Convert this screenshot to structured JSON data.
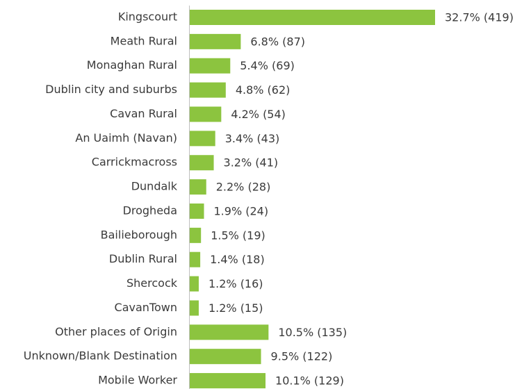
{
  "chart_data": {
    "type": "hbar",
    "color": "#8cc43f",
    "categories": [
      "Kingscourt",
      "Meath Rural",
      "Monaghan Rural",
      "Dublin city and suburbs",
      "Cavan Rural",
      "An Uaimh (Navan)",
      "Carrickmacross",
      "Dundalk",
      "Drogheda",
      "Bailieborough",
      "Dublin Rural",
      "Shercock",
      "CavanTown",
      "Other places of Origin",
      "Unknown/Blank Destination",
      "Mobile Worker"
    ],
    "values": [
      32.7,
      6.8,
      5.4,
      4.8,
      4.2,
      3.4,
      3.2,
      2.2,
      1.9,
      1.5,
      1.4,
      1.2,
      1.2,
      10.5,
      9.5,
      10.1
    ],
    "value_labels": [
      "32.7% (419)",
      "6.8% (87)",
      "5.4% (69)",
      "4.8% (62)",
      "4.2% (54)",
      "3.4% (43)",
      "3.2% (41)",
      "2.2% (28)",
      "1.9% (24)",
      "1.5% (19)",
      "1.4% (18)",
      "1.2% (16)",
      "1.2% (15)",
      "10.5% (135)",
      "9.5% (122)",
      "10.1% (129)"
    ]
  }
}
